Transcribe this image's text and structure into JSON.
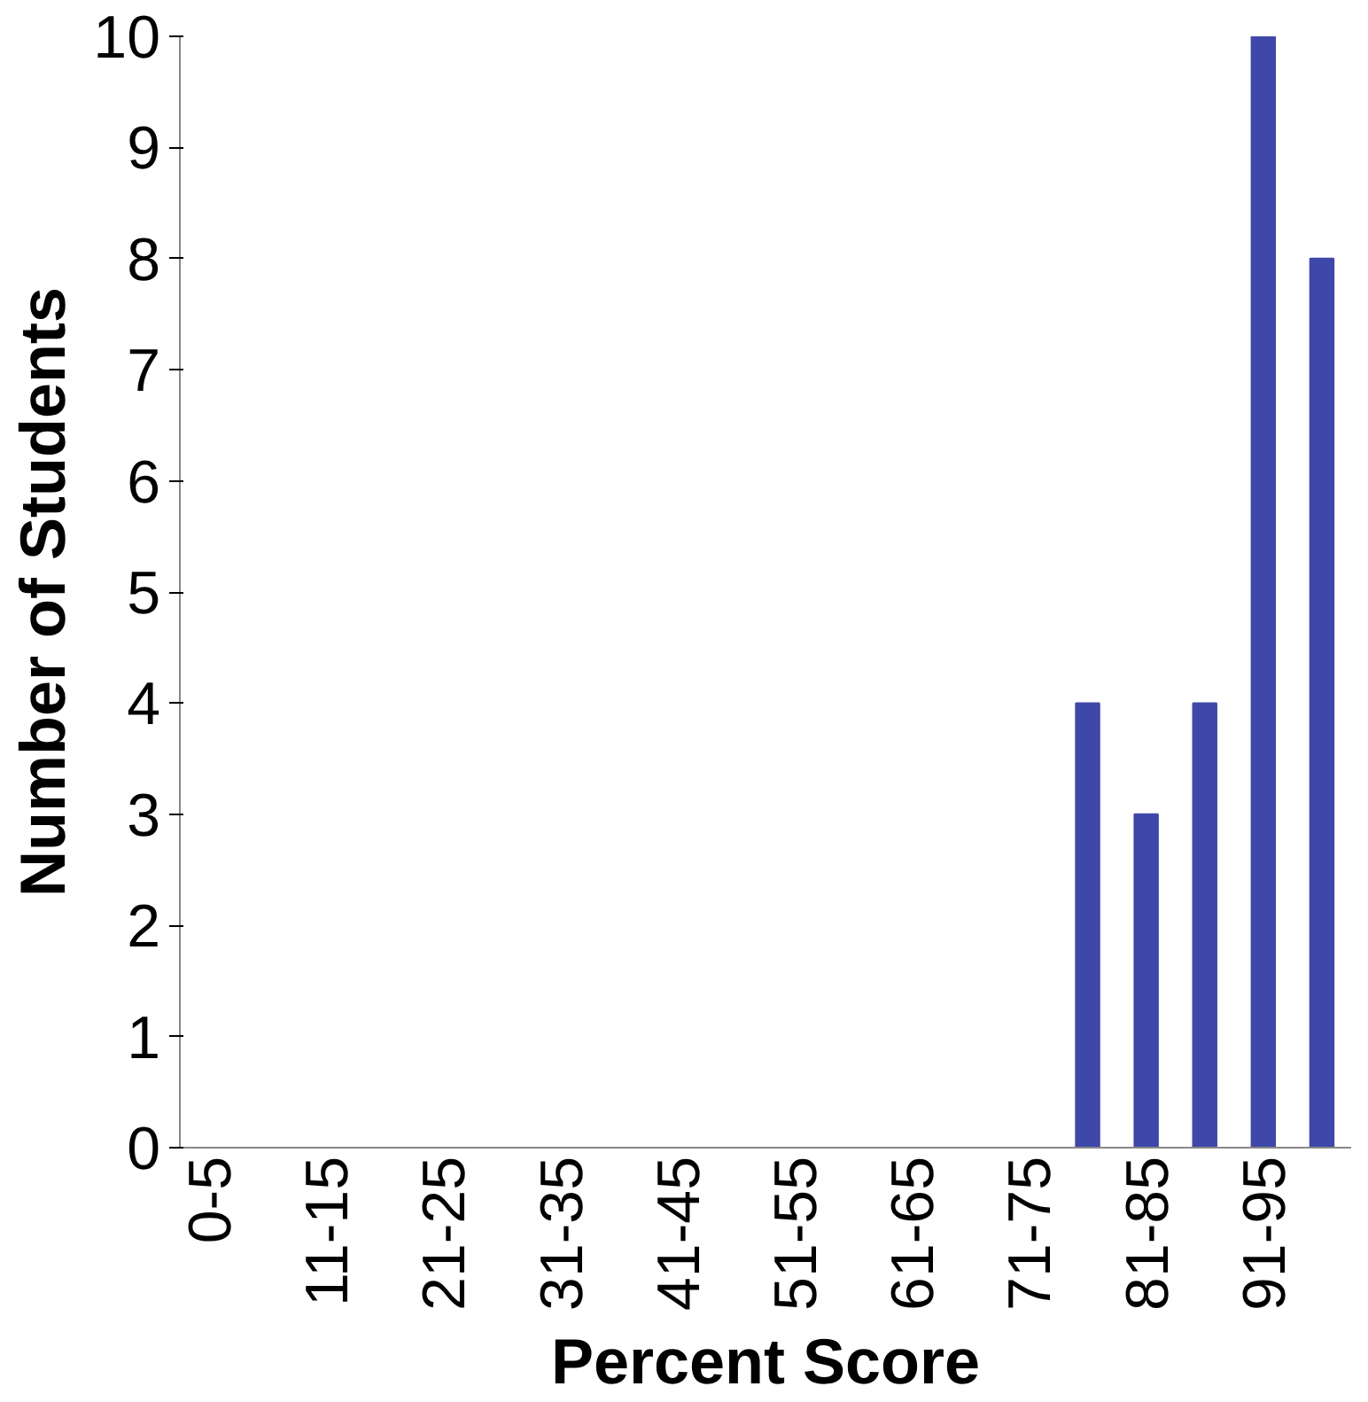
{
  "chart_data": {
    "type": "bar",
    "xlabel": "Percent Score",
    "ylabel": "Number of Students",
    "categories": [
      "0-5",
      null,
      "11-15",
      null,
      "21-25",
      null,
      "31-35",
      null,
      "41-45",
      null,
      "51-55",
      null,
      "61-65",
      null,
      "71-75",
      null,
      "81-85",
      null,
      "91-95",
      null
    ],
    "values": [
      0,
      0,
      0,
      0,
      0,
      0,
      0,
      0,
      0,
      0,
      0,
      0,
      0,
      0,
      0,
      4,
      3,
      4,
      10,
      8
    ],
    "color": "#3f48a8",
    "ylim": [
      0,
      10
    ],
    "yticks": [
      0,
      1,
      2,
      3,
      4,
      5,
      6,
      7,
      8,
      9,
      10
    ],
    "grid": false
  }
}
